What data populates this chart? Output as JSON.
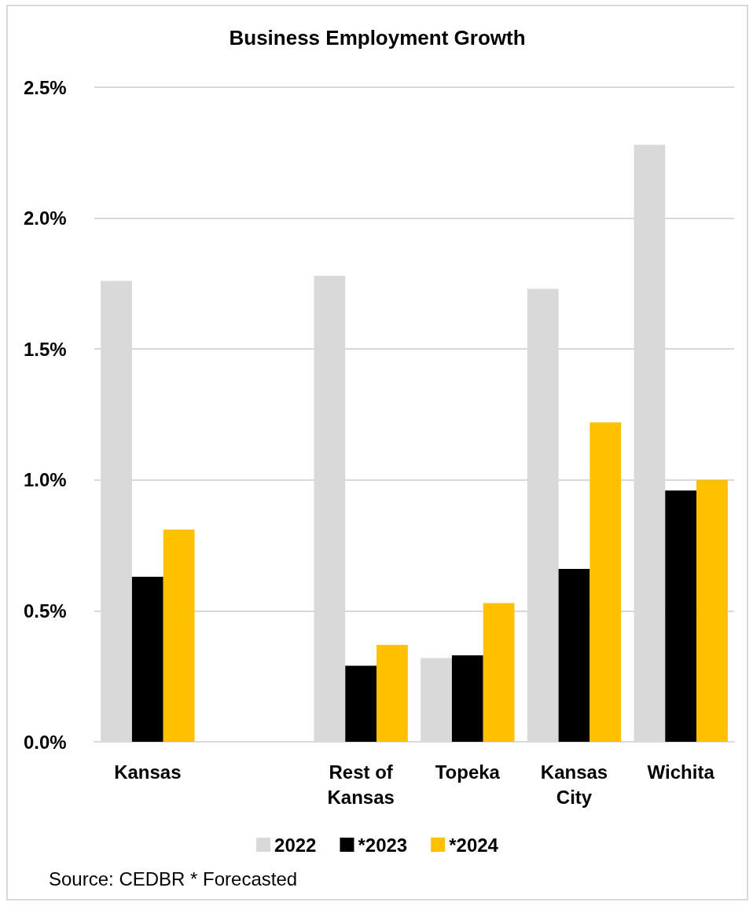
{
  "chart_data": {
    "type": "bar",
    "title": "Business Employment Growth",
    "categories": [
      "Kansas",
      null,
      "Rest of\nKansas",
      "Topeka",
      "Kansas\nCity",
      "Wichita"
    ],
    "series": [
      {
        "name": "2022",
        "color": "#d9d9d9",
        "values": [
          1.76,
          null,
          1.78,
          0.32,
          1.73,
          2.28
        ]
      },
      {
        "name": "*2023",
        "color": "#000000",
        "values": [
          0.63,
          null,
          0.29,
          0.33,
          0.66,
          0.96
        ]
      },
      {
        "name": "*2024",
        "color": "#ffc000",
        "values": [
          0.81,
          null,
          0.37,
          0.53,
          1.22,
          1.0
        ]
      }
    ],
    "ylim": [
      0,
      2.5
    ],
    "yticks": [
      {
        "value": 0,
        "label": "0.0%"
      },
      {
        "value": 0.5,
        "label": "0.5%"
      },
      {
        "value": 1,
        "label": "1.0%"
      },
      {
        "value": 1.5,
        "label": "1.5%"
      },
      {
        "value": 2,
        "label": "2.0%"
      },
      {
        "value": 2.5,
        "label": "2.5%"
      }
    ],
    "grid": "y",
    "legend": "bottom",
    "annotations": [
      "Source: CEDBR * Forecasted"
    ]
  }
}
